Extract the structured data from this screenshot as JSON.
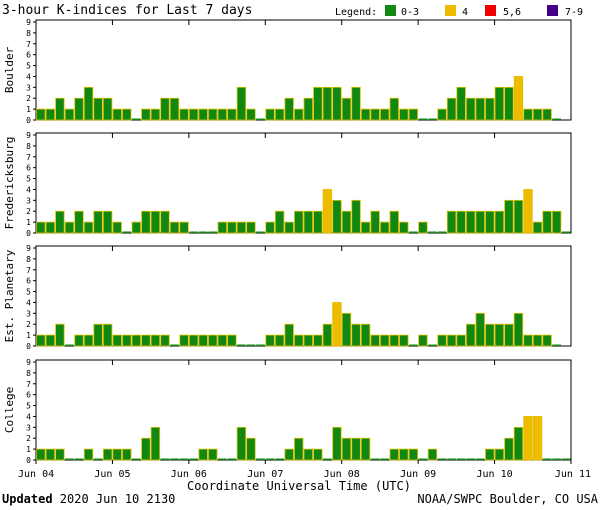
{
  "chart_data": {
    "type": "bar",
    "title": "3-hour K-indices for Last 7 days",
    "legend": {
      "label": "Legend:",
      "items": [
        {
          "label": "0-3",
          "color": "#118811"
        },
        {
          "label": "4",
          "color": "#eebb00"
        },
        {
          "label": "5,6",
          "color": "#ee0000"
        },
        {
          "label": "7-9",
          "color": "#440088"
        }
      ]
    },
    "xlabel": "Coordinate Universal Time (UTC)",
    "x_ticks": [
      "Jun 04",
      "Jun 05",
      "Jun 06",
      "Jun 07",
      "Jun 08",
      "Jun 09",
      "Jun 10",
      "Jun 11"
    ],
    "ylim": [
      0,
      9
    ],
    "y_ticks": [
      "0",
      "1",
      "2",
      "3",
      "4",
      "5",
      "6",
      "7",
      "8",
      "9"
    ],
    "bins_per_day": 8,
    "series": [
      {
        "name": "Boulder",
        "values": [
          1,
          1,
          2,
          1,
          2,
          3,
          2,
          2,
          1,
          1,
          0,
          1,
          1,
          2,
          2,
          1,
          1,
          1,
          1,
          1,
          1,
          3,
          1,
          0,
          1,
          1,
          2,
          1,
          2,
          3,
          3,
          3,
          2,
          3,
          1,
          1,
          1,
          2,
          1,
          1,
          0,
          0,
          1,
          2,
          3,
          2,
          2,
          2,
          3,
          3,
          4,
          1,
          1,
          1,
          0
        ]
      },
      {
        "name": "Fredericksburg",
        "values": [
          1,
          1,
          2,
          1,
          2,
          1,
          2,
          2,
          1,
          0,
          1,
          2,
          2,
          2,
          1,
          1,
          0,
          0,
          0,
          1,
          1,
          1,
          1,
          0,
          1,
          2,
          1,
          2,
          2,
          2,
          4,
          3,
          2,
          3,
          1,
          2,
          1,
          2,
          1,
          0,
          1,
          0,
          0,
          2,
          2,
          2,
          2,
          2,
          2,
          3,
          3,
          4,
          1,
          2,
          2,
          0
        ]
      },
      {
        "name": "Est. Planetary",
        "values": [
          1,
          1,
          2,
          0,
          1,
          1,
          2,
          2,
          1,
          1,
          1,
          1,
          1,
          1,
          0,
          1,
          1,
          1,
          1,
          1,
          1,
          0,
          0,
          0,
          1,
          1,
          2,
          1,
          1,
          1,
          2,
          4,
          3,
          2,
          2,
          1,
          1,
          1,
          1,
          0,
          1,
          0,
          1,
          1,
          1,
          2,
          3,
          2,
          2,
          2,
          3,
          1,
          1,
          1,
          0
        ]
      },
      {
        "name": "College",
        "values": [
          1,
          1,
          1,
          0,
          0,
          1,
          0,
          1,
          1,
          1,
          0,
          2,
          3,
          0,
          0,
          0,
          0,
          1,
          1,
          0,
          0,
          3,
          2,
          0,
          0,
          0,
          1,
          2,
          1,
          1,
          0,
          3,
          2,
          2,
          2,
          0,
          0,
          1,
          1,
          1,
          0,
          1,
          0,
          0,
          0,
          0,
          0,
          1,
          1,
          2,
          3,
          4,
          4,
          0,
          0,
          0
        ]
      }
    ]
  },
  "footer": {
    "updated_label": "Updated",
    "updated_value": " 2020 Jun 10 2130",
    "source": "NOAA/SWPC Boulder, CO USA"
  }
}
